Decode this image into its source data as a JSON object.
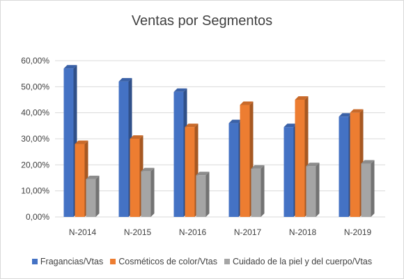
{
  "chart_data": {
    "type": "bar",
    "title": "Ventas por Segmentos",
    "categories": [
      "N-2014",
      "N-2015",
      "N-2016",
      "N-2017",
      "N-2018",
      "N-2019"
    ],
    "series": [
      {
        "name": "Fragancias/Vtas",
        "color": "#4472c4",
        "values": [
          57,
          52,
          48,
          36,
          34.5,
          38.5
        ]
      },
      {
        "name": "Cosméticos de color/Vtas",
        "color": "#ed7d31",
        "values": [
          28,
          30,
          34.5,
          43,
          45,
          40
        ]
      },
      {
        "name": "Cuidado de la piel y del cuerpo/Vtas",
        "color": "#a5a5a5",
        "values": [
          14.5,
          17.5,
          16,
          18.5,
          19.5,
          20.5
        ]
      }
    ],
    "ylim": [
      0,
      60
    ],
    "yticks": [
      "0,00%",
      "10,00%",
      "20,00%",
      "30,00%",
      "40,00%",
      "50,00%",
      "60,00%"
    ],
    "grid": true,
    "legend_position": "bottom"
  }
}
